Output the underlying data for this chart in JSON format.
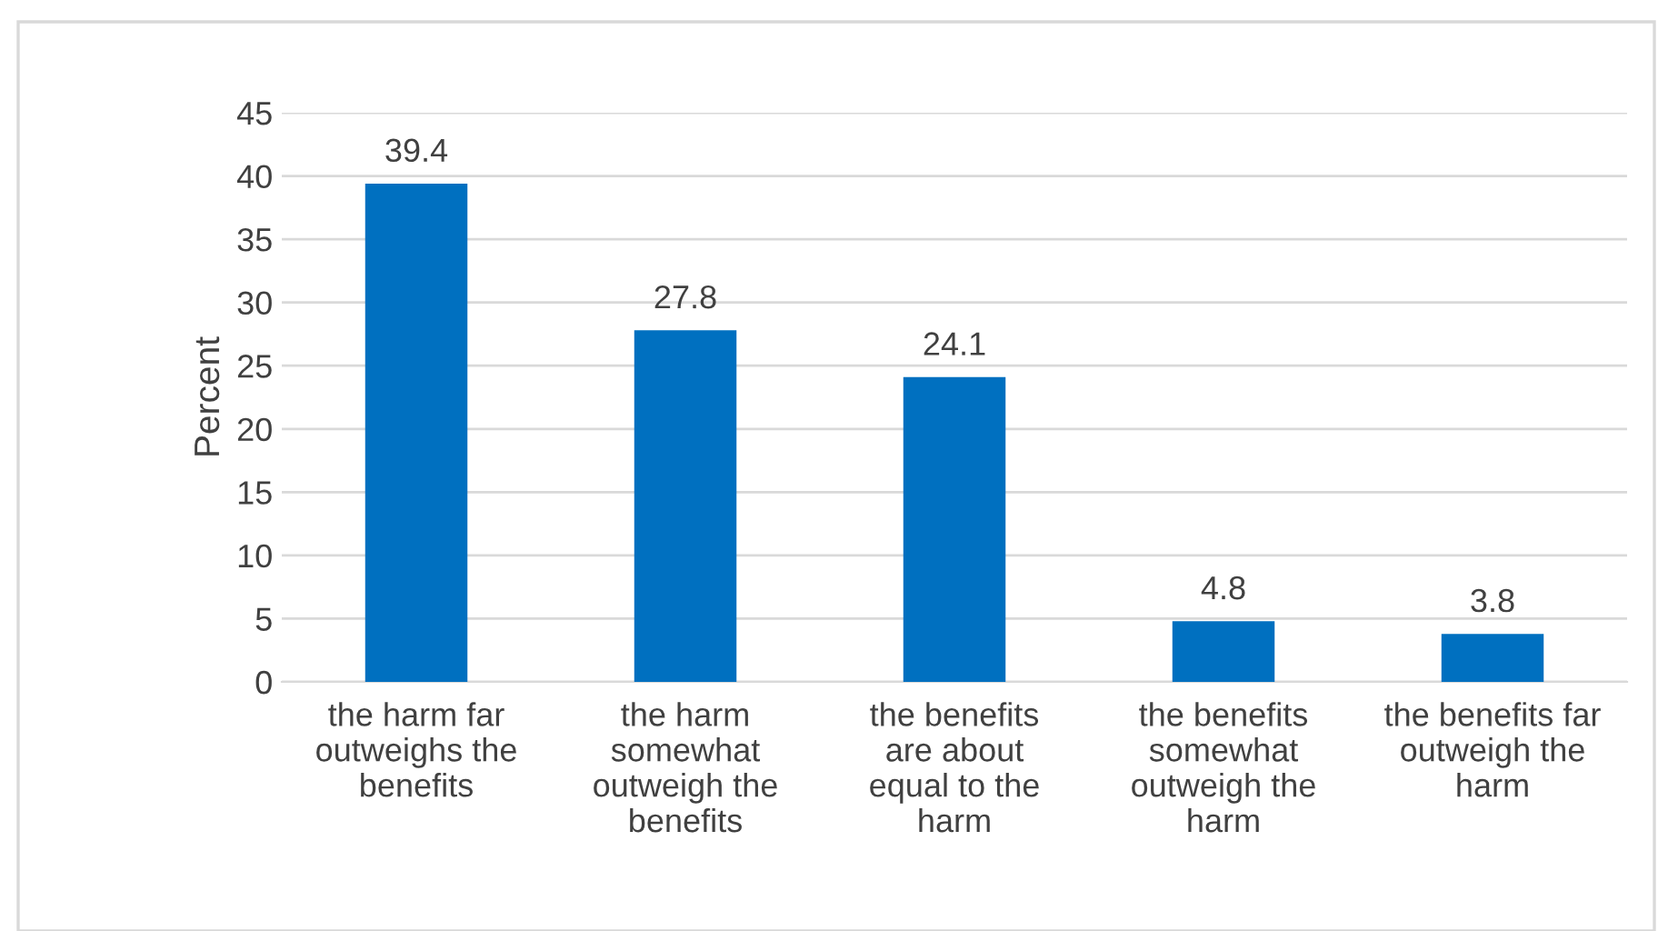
{
  "chart_data": {
    "type": "bar",
    "ylabel": "Percent",
    "categories": [
      "the harm far\noutweighs the\nbenefits",
      "the harm\nsomewhat\noutweigh the\nbenefits",
      "the benefits\nare about\nequal to the\nharm",
      "the benefits\nsomewhat\noutweigh the\nharm",
      "the benefits far\noutweigh the\nharm"
    ],
    "values": [
      39.4,
      27.8,
      24.1,
      4.8,
      3.8
    ],
    "color": "#0070c0",
    "ylim": [
      0,
      45
    ],
    "yticks": [
      0,
      5,
      10,
      15,
      20,
      25,
      30,
      35,
      40,
      45
    ],
    "grid": "y",
    "data_labels": true,
    "legend": false
  }
}
